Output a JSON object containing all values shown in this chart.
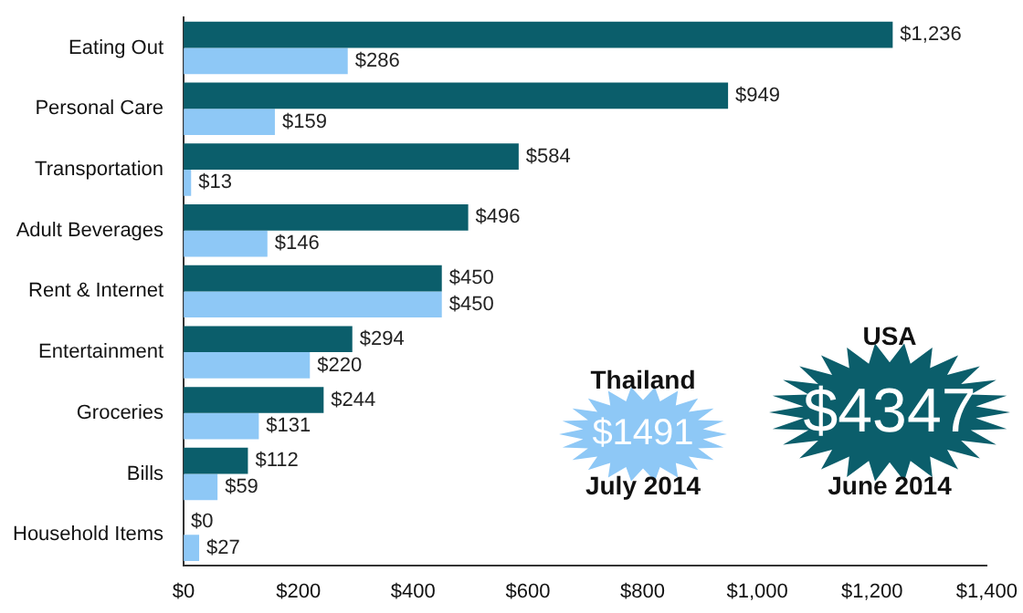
{
  "chart_data": {
    "type": "bar",
    "orientation": "horizontal",
    "categories": [
      "Eating Out",
      "Personal Care",
      "Transportation",
      "Adult Beverages",
      "Rent & Internet",
      "Entertainment",
      "Groceries",
      "Bills",
      "Household Items"
    ],
    "series": [
      {
        "color": "#0b5e6b",
        "values": [
          1236,
          949,
          584,
          496,
          450,
          294,
          244,
          112,
          0
        ],
        "value_labels": [
          "$1,236",
          "$949",
          "$584",
          "$496",
          "$450",
          "$294",
          "$244",
          "$112",
          "$0"
        ]
      },
      {
        "color": "#8ec8f6",
        "values": [
          286,
          159,
          13,
          146,
          450,
          220,
          131,
          59,
          27
        ],
        "value_labels": [
          "$286",
          "$159",
          "$13",
          "$146",
          "$450",
          "$220",
          "$131",
          "$59",
          "$27"
        ]
      }
    ],
    "xlim": [
      0,
      1400
    ],
    "xticks": [
      {
        "value": 0,
        "label": "$0"
      },
      {
        "value": 200,
        "label": "$200"
      },
      {
        "value": 400,
        "label": "$400"
      },
      {
        "value": 600,
        "label": "$600"
      },
      {
        "value": 800,
        "label": "$800"
      },
      {
        "value": 1000,
        "label": "$1,000"
      },
      {
        "value": 1200,
        "label": "$1,200"
      },
      {
        "value": 1400,
        "label": "$1,400"
      }
    ],
    "grid": false,
    "legend": false,
    "annotations": [
      "Thailand",
      "$1491",
      "July 2014",
      "USA",
      "$4347",
      "June 2014"
    ]
  }
}
